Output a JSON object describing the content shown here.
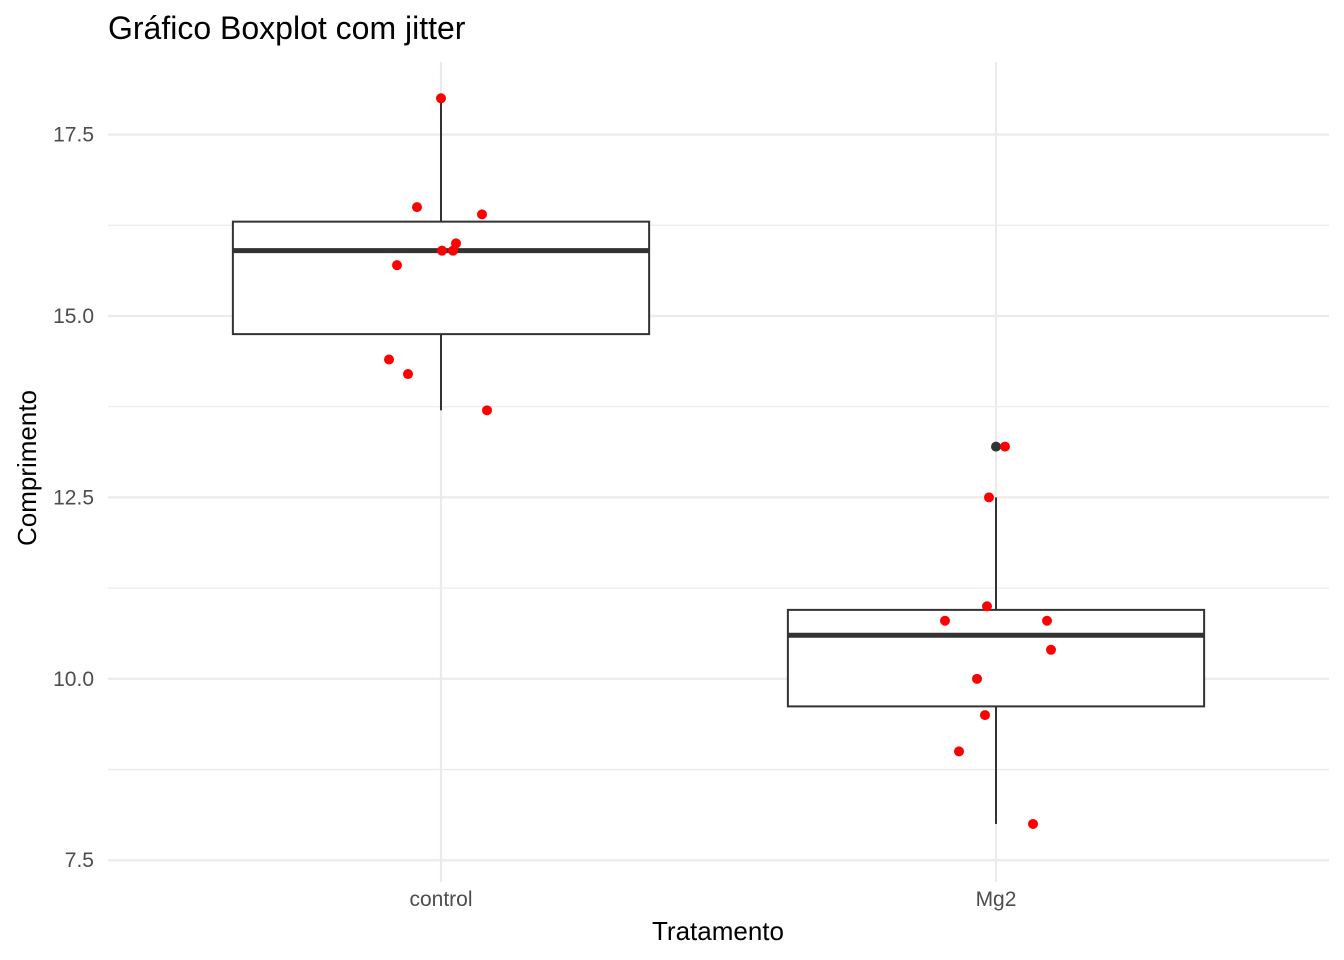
{
  "chart_data": {
    "type": "boxplot",
    "title": "Gráfico Boxplot com jitter",
    "xlabel": "Tratamento",
    "ylabel": "Comprimento",
    "categories": [
      "control",
      "Mg2"
    ],
    "ylim": [
      7.2,
      18.5
    ],
    "yticks": [
      7.5,
      10.0,
      12.5,
      15.0,
      17.5
    ],
    "ytick_labels": [
      "7.5",
      "10.0",
      "12.5",
      "15.0",
      "17.5"
    ],
    "grid": true,
    "colors": {
      "points": "#ff0000",
      "outlier": "#333333",
      "box": "#333333",
      "grid": "#ebebeb"
    },
    "boxes": [
      {
        "category": "control",
        "q1": 14.75,
        "median": 15.9,
        "q3": 16.3,
        "whisker_low": 13.7,
        "whisker_high": 18.0,
        "outliers": []
      },
      {
        "category": "Mg2",
        "q1": 9.62,
        "median": 10.6,
        "q3": 10.95,
        "whisker_low": 8.0,
        "whisker_high": 12.5,
        "outliers": [
          13.2
        ]
      }
    ],
    "points": [
      {
        "category": "control",
        "values": [
          18.0,
          16.5,
          16.4,
          16.0,
          15.9,
          15.9,
          15.7,
          14.4,
          14.2,
          13.7
        ]
      },
      {
        "category": "Mg2",
        "values": [
          13.2,
          12.5,
          11.0,
          10.8,
          10.8,
          10.4,
          10.0,
          9.5,
          9.0,
          8.0
        ]
      }
    ]
  }
}
